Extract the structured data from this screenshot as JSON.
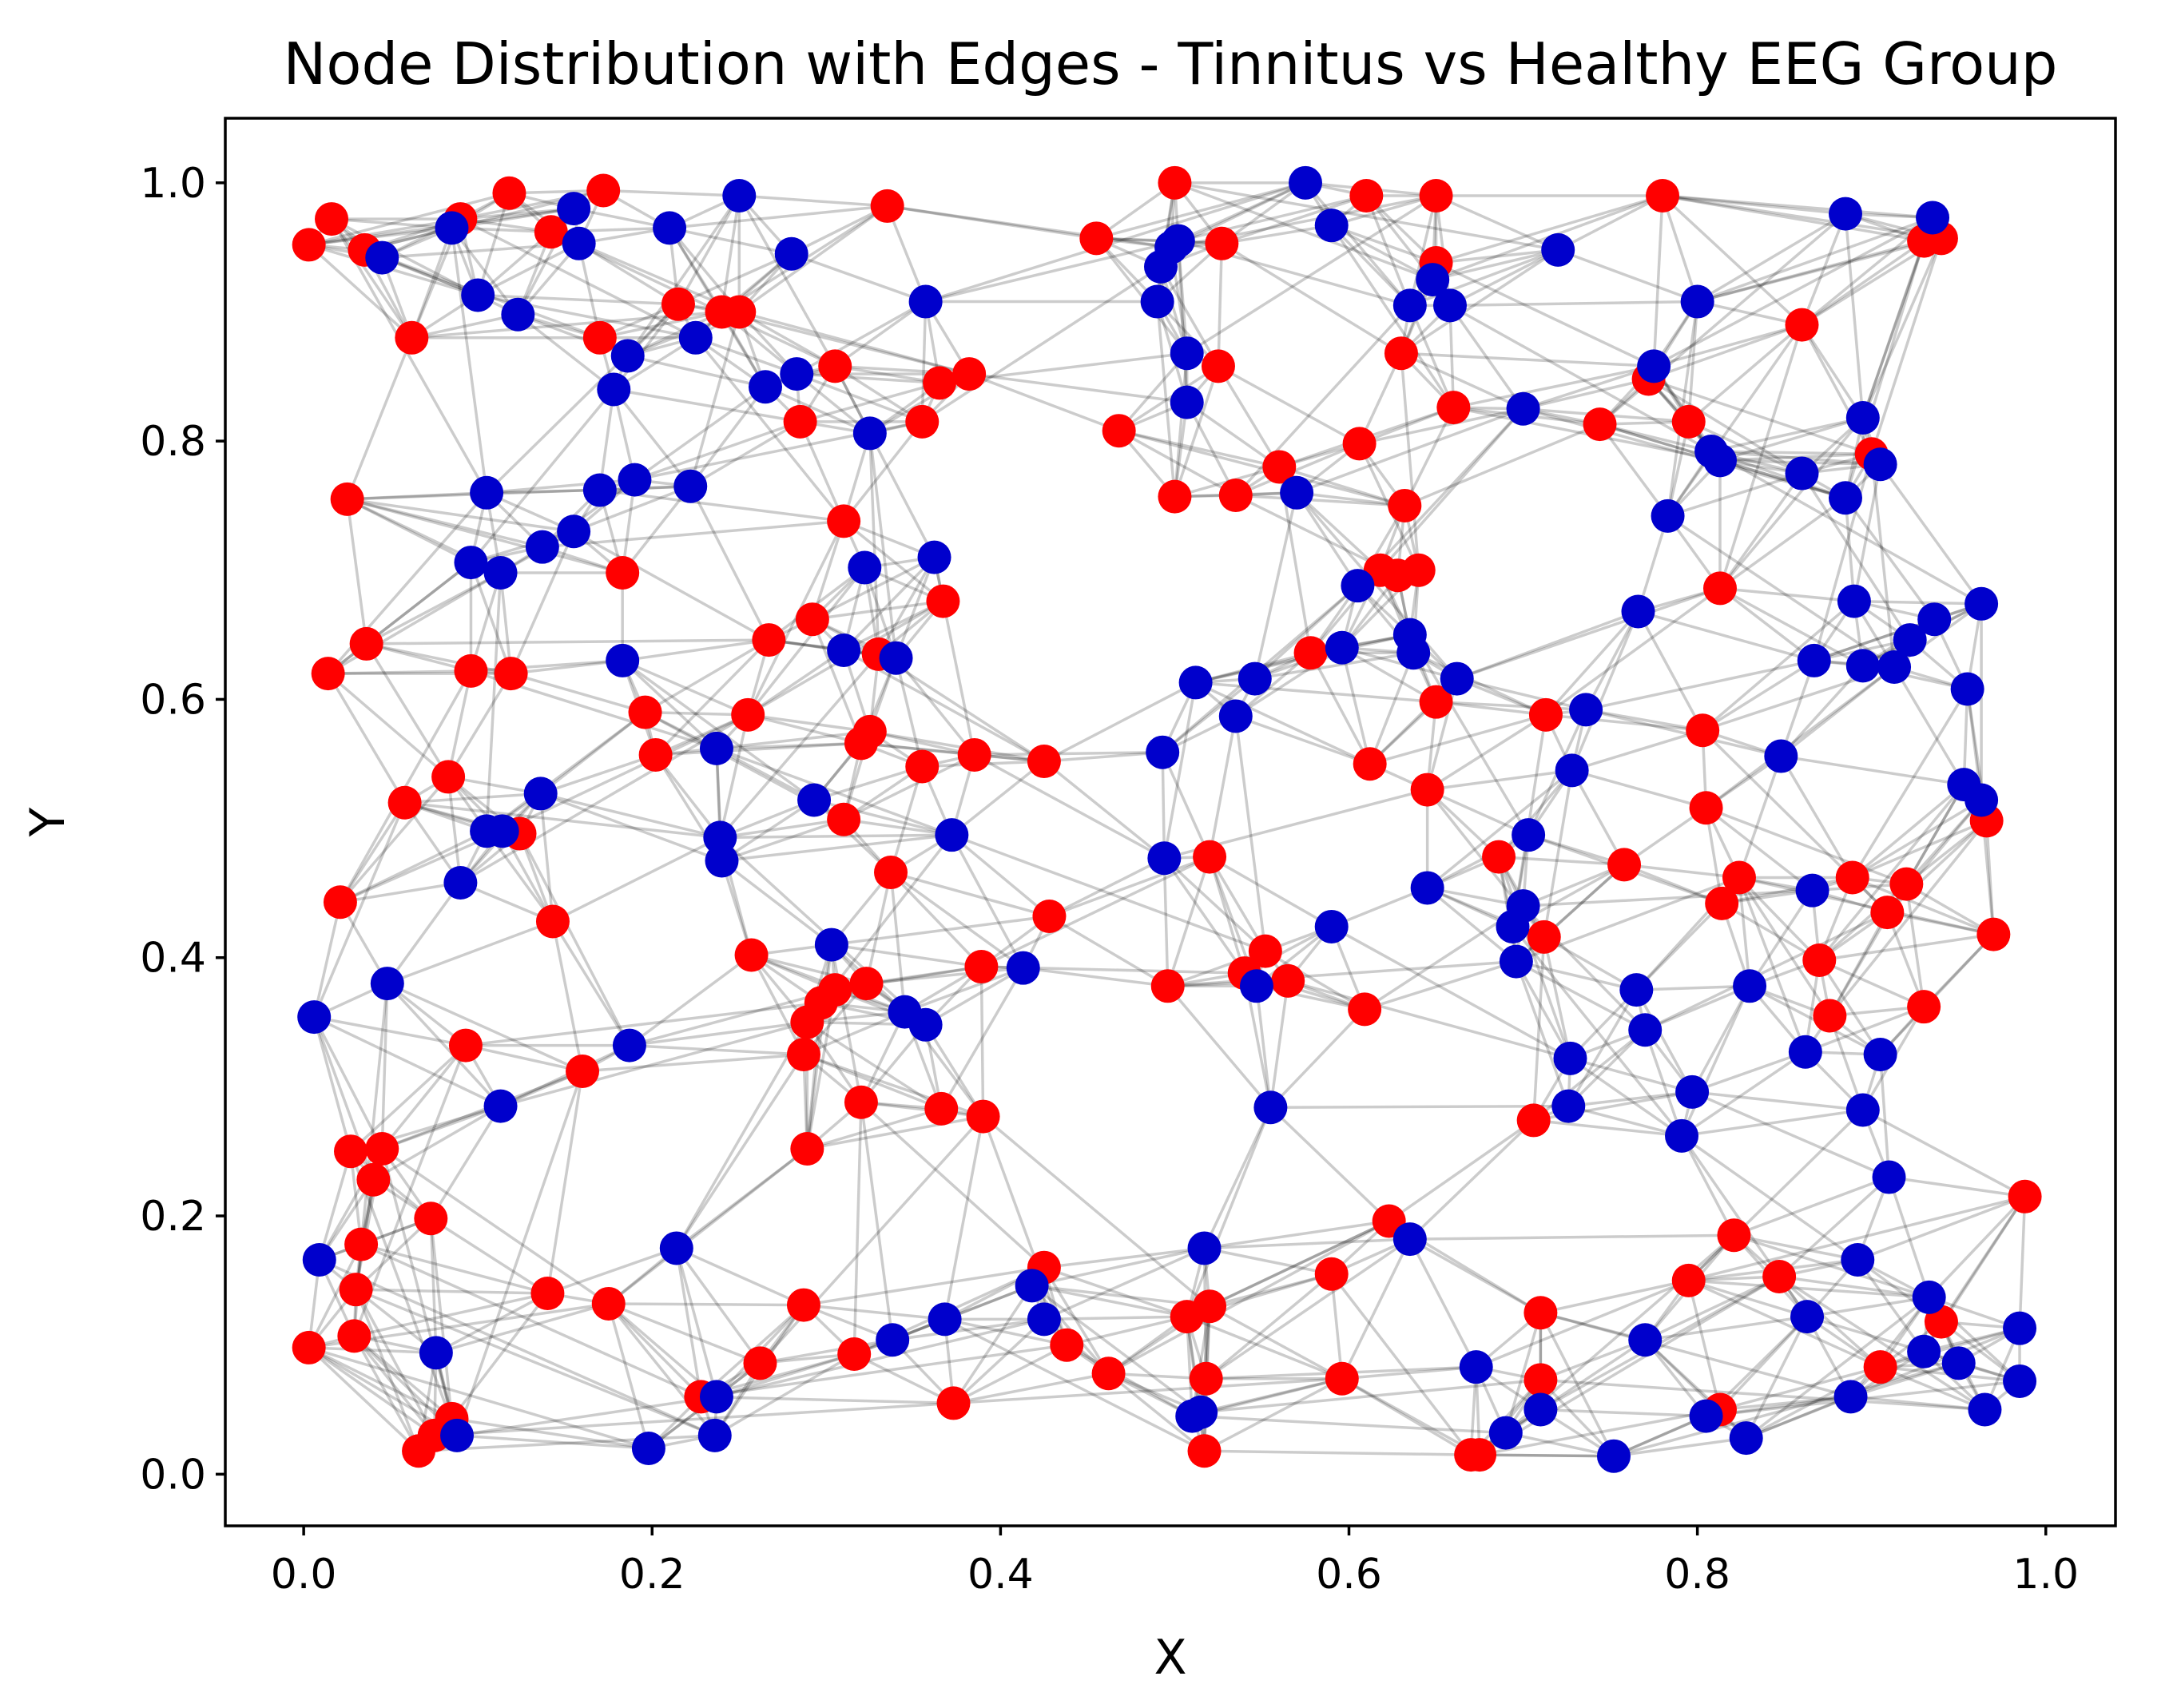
{
  "chart_data": {
    "type": "scatter",
    "title": "Node Distribution with Edges - Tinnitus vs Healthy EEG Group",
    "xlabel": "X",
    "ylabel": "Y",
    "xlim": [
      -0.045,
      1.04
    ],
    "ylim": [
      -0.04,
      1.05
    ],
    "xticks": [
      0.0,
      0.2,
      0.4,
      0.6,
      0.8,
      1.0
    ],
    "yticks": [
      0.0,
      0.2,
      0.4,
      0.6,
      0.8,
      1.0
    ],
    "xtick_labels": [
      "0.0",
      "0.2",
      "0.4",
      "0.6",
      "0.8",
      "1.0"
    ],
    "ytick_labels": [
      "0.0",
      "0.2",
      "0.4",
      "0.6",
      "0.8",
      "1.0"
    ],
    "legend": "none",
    "grid": false,
    "colors": {
      "tinnitus": "#ff0000",
      "healthy": "#0000cc",
      "edge": "#000000"
    },
    "series": [
      {
        "color": "#ff0000",
        "points": [
          [
            0.003,
            0.952
          ],
          [
            0.016,
            0.972
          ],
          [
            0.035,
            0.948
          ],
          [
            0.062,
            0.88
          ],
          [
            0.09,
            0.972
          ],
          [
            0.118,
            0.992
          ],
          [
            0.142,
            0.962
          ],
          [
            0.172,
            0.994
          ],
          [
            0.215,
            0.906
          ],
          [
            0.25,
            0.9
          ],
          [
            0.335,
            0.982
          ],
          [
            0.455,
            0.957
          ],
          [
            0.5,
            1.0
          ],
          [
            0.527,
            0.953
          ],
          [
            0.61,
            0.99
          ],
          [
            0.65,
            0.99
          ],
          [
            0.65,
            0.938
          ],
          [
            0.78,
            0.99
          ],
          [
            0.86,
            0.89
          ],
          [
            0.93,
            0.955
          ],
          [
            0.94,
            0.957
          ],
          [
            0.025,
            0.755
          ],
          [
            0.17,
            0.88
          ],
          [
            0.24,
            0.9
          ],
          [
            0.305,
            0.858
          ],
          [
            0.285,
            0.815
          ],
          [
            0.355,
            0.815
          ],
          [
            0.365,
            0.845
          ],
          [
            0.382,
            0.852
          ],
          [
            0.468,
            0.808
          ],
          [
            0.5,
            0.757
          ],
          [
            0.525,
            0.858
          ],
          [
            0.535,
            0.758
          ],
          [
            0.56,
            0.78
          ],
          [
            0.606,
            0.798
          ],
          [
            0.63,
            0.868
          ],
          [
            0.632,
            0.75
          ],
          [
            0.66,
            0.826
          ],
          [
            0.744,
            0.813
          ],
          [
            0.772,
            0.848
          ],
          [
            0.795,
            0.815
          ],
          [
            0.9,
            0.79
          ],
          [
            0.014,
            0.62
          ],
          [
            0.036,
            0.643
          ],
          [
            0.096,
            0.622
          ],
          [
            0.119,
            0.62
          ],
          [
            0.183,
            0.698
          ],
          [
            0.196,
            0.59
          ],
          [
            0.202,
            0.557
          ],
          [
            0.255,
            0.588
          ],
          [
            0.267,
            0.646
          ],
          [
            0.292,
            0.662
          ],
          [
            0.31,
            0.738
          ],
          [
            0.32,
            0.566
          ],
          [
            0.325,
            0.575
          ],
          [
            0.33,
            0.635
          ],
          [
            0.367,
            0.676
          ],
          [
            0.355,
            0.548
          ],
          [
            0.385,
            0.557
          ],
          [
            0.425,
            0.552
          ],
          [
            0.578,
            0.636
          ],
          [
            0.618,
            0.7
          ],
          [
            0.628,
            0.696
          ],
          [
            0.64,
            0.7
          ],
          [
            0.65,
            0.598
          ],
          [
            0.612,
            0.55
          ],
          [
            0.645,
            0.53
          ],
          [
            0.713,
            0.588
          ],
          [
            0.803,
            0.576
          ],
          [
            0.813,
            0.686
          ],
          [
            0.058,
            0.52
          ],
          [
            0.083,
            0.54
          ],
          [
            0.124,
            0.496
          ],
          [
            0.021,
            0.443
          ],
          [
            0.143,
            0.428
          ],
          [
            0.31,
            0.507
          ],
          [
            0.337,
            0.466
          ],
          [
            0.257,
            0.402
          ],
          [
            0.297,
            0.365
          ],
          [
            0.305,
            0.375
          ],
          [
            0.323,
            0.38
          ],
          [
            0.389,
            0.393
          ],
          [
            0.428,
            0.432
          ],
          [
            0.496,
            0.378
          ],
          [
            0.52,
            0.478
          ],
          [
            0.54,
            0.388
          ],
          [
            0.552,
            0.405
          ],
          [
            0.565,
            0.382
          ],
          [
            0.609,
            0.36
          ],
          [
            0.686,
            0.478
          ],
          [
            0.712,
            0.416
          ],
          [
            0.758,
            0.472
          ],
          [
            0.805,
            0.516
          ],
          [
            0.814,
            0.442
          ],
          [
            0.824,
            0.462
          ],
          [
            0.87,
            0.398
          ],
          [
            0.876,
            0.355
          ],
          [
            0.889,
            0.462
          ],
          [
            0.909,
            0.435
          ],
          [
            0.92,
            0.457
          ],
          [
            0.93,
            0.362
          ],
          [
            0.966,
            0.506
          ],
          [
            0.97,
            0.418
          ],
          [
            0.093,
            0.332
          ],
          [
            0.16,
            0.312
          ],
          [
            0.287,
            0.325
          ],
          [
            0.289,
            0.35
          ],
          [
            0.32,
            0.288
          ],
          [
            0.366,
            0.283
          ],
          [
            0.39,
            0.277
          ],
          [
            0.289,
            0.252
          ],
          [
            0.706,
            0.274
          ],
          [
            0.027,
            0.25
          ],
          [
            0.045,
            0.252
          ],
          [
            0.04,
            0.228
          ],
          [
            0.033,
            0.178
          ],
          [
            0.073,
            0.198
          ],
          [
            0.03,
            0.143
          ],
          [
            0.029,
            0.107
          ],
          [
            0.003,
            0.098
          ],
          [
            0.14,
            0.14
          ],
          [
            0.175,
            0.132
          ],
          [
            0.287,
            0.131
          ],
          [
            0.262,
            0.086
          ],
          [
            0.316,
            0.093
          ],
          [
            0.425,
            0.16
          ],
          [
            0.438,
            0.1
          ],
          [
            0.462,
            0.078
          ],
          [
            0.507,
            0.122
          ],
          [
            0.52,
            0.13
          ],
          [
            0.59,
            0.155
          ],
          [
            0.623,
            0.196
          ],
          [
            0.71,
            0.125
          ],
          [
            0.518,
            0.074
          ],
          [
            0.596,
            0.074
          ],
          [
            0.71,
            0.073
          ],
          [
            0.795,
            0.15
          ],
          [
            0.821,
            0.185
          ],
          [
            0.847,
            0.153
          ],
          [
            0.905,
            0.083
          ],
          [
            0.94,
            0.118
          ],
          [
            0.988,
            0.215
          ],
          [
            0.066,
            0.018
          ],
          [
            0.075,
            0.03
          ],
          [
            0.085,
            0.043
          ],
          [
            0.228,
            0.06
          ],
          [
            0.373,
            0.055
          ],
          [
            0.517,
            0.018
          ],
          [
            0.67,
            0.015
          ],
          [
            0.675,
            0.015
          ],
          [
            0.813,
            0.05
          ]
        ]
      },
      {
        "color": "#0000cc",
        "points": [
          [
            0.045,
            0.942
          ],
          [
            0.085,
            0.965
          ],
          [
            0.1,
            0.913
          ],
          [
            0.123,
            0.898
          ],
          [
            0.155,
            0.98
          ],
          [
            0.158,
            0.953
          ],
          [
            0.21,
            0.965
          ],
          [
            0.225,
            0.88
          ],
          [
            0.25,
            0.99
          ],
          [
            0.28,
            0.945
          ],
          [
            0.357,
            0.908
          ],
          [
            0.49,
            0.908
          ],
          [
            0.492,
            0.935
          ],
          [
            0.498,
            0.95
          ],
          [
            0.502,
            0.955
          ],
          [
            0.575,
            1.0
          ],
          [
            0.59,
            0.967
          ],
          [
            0.635,
            0.905
          ],
          [
            0.648,
            0.925
          ],
          [
            0.658,
            0.905
          ],
          [
            0.72,
            0.948
          ],
          [
            0.8,
            0.908
          ],
          [
            0.885,
            0.976
          ],
          [
            0.935,
            0.973
          ],
          [
            0.105,
            0.76
          ],
          [
            0.17,
            0.762
          ],
          [
            0.19,
            0.77
          ],
          [
            0.222,
            0.765
          ],
          [
            0.178,
            0.84
          ],
          [
            0.186,
            0.866
          ],
          [
            0.265,
            0.842
          ],
          [
            0.283,
            0.852
          ],
          [
            0.325,
            0.806
          ],
          [
            0.507,
            0.868
          ],
          [
            0.507,
            0.83
          ],
          [
            0.57,
            0.76
          ],
          [
            0.7,
            0.825
          ],
          [
            0.775,
            0.858
          ],
          [
            0.808,
            0.792
          ],
          [
            0.813,
            0.785
          ],
          [
            0.86,
            0.775
          ],
          [
            0.885,
            0.756
          ],
          [
            0.895,
            0.818
          ],
          [
            0.905,
            0.782
          ],
          [
            0.783,
            0.742
          ],
          [
            0.096,
            0.706
          ],
          [
            0.113,
            0.698
          ],
          [
            0.137,
            0.718
          ],
          [
            0.155,
            0.73
          ],
          [
            0.183,
            0.63
          ],
          [
            0.31,
            0.638
          ],
          [
            0.322,
            0.702
          ],
          [
            0.34,
            0.632
          ],
          [
            0.362,
            0.71
          ],
          [
            0.512,
            0.613
          ],
          [
            0.535,
            0.587
          ],
          [
            0.546,
            0.616
          ],
          [
            0.596,
            0.64
          ],
          [
            0.605,
            0.688
          ],
          [
            0.635,
            0.65
          ],
          [
            0.637,
            0.636
          ],
          [
            0.662,
            0.616
          ],
          [
            0.736,
            0.592
          ],
          [
            0.766,
            0.668
          ],
          [
            0.867,
            0.63
          ],
          [
            0.89,
            0.676
          ],
          [
            0.895,
            0.626
          ],
          [
            0.913,
            0.625
          ],
          [
            0.922,
            0.646
          ],
          [
            0.936,
            0.662
          ],
          [
            0.963,
            0.674
          ],
          [
            0.955,
            0.608
          ],
          [
            0.105,
            0.498
          ],
          [
            0.114,
            0.498
          ],
          [
            0.136,
            0.527
          ],
          [
            0.09,
            0.458
          ],
          [
            0.048,
            0.38
          ],
          [
            0.006,
            0.354
          ],
          [
            0.237,
            0.562
          ],
          [
            0.239,
            0.493
          ],
          [
            0.24,
            0.475
          ],
          [
            0.293,
            0.522
          ],
          [
            0.303,
            0.41
          ],
          [
            0.345,
            0.358
          ],
          [
            0.357,
            0.348
          ],
          [
            0.372,
            0.495
          ],
          [
            0.413,
            0.392
          ],
          [
            0.493,
            0.559
          ],
          [
            0.494,
            0.477
          ],
          [
            0.547,
            0.378
          ],
          [
            0.59,
            0.424
          ],
          [
            0.645,
            0.454
          ],
          [
            0.694,
            0.424
          ],
          [
            0.696,
            0.397
          ],
          [
            0.7,
            0.44
          ],
          [
            0.703,
            0.495
          ],
          [
            0.728,
            0.545
          ],
          [
            0.765,
            0.375
          ],
          [
            0.77,
            0.344
          ],
          [
            0.83,
            0.378
          ],
          [
            0.848,
            0.556
          ],
          [
            0.866,
            0.452
          ],
          [
            0.862,
            0.327
          ],
          [
            0.905,
            0.325
          ],
          [
            0.953,
            0.534
          ],
          [
            0.963,
            0.522
          ]
        ]
      },
      {
        "color": "#0000cc",
        "points": [
          [
            0.187,
            0.332
          ],
          [
            0.113,
            0.285
          ],
          [
            0.555,
            0.284
          ],
          [
            0.727,
            0.322
          ],
          [
            0.726,
            0.285
          ],
          [
            0.797,
            0.296
          ],
          [
            0.791,
            0.262
          ],
          [
            0.895,
            0.282
          ],
          [
            0.91,
            0.23
          ],
          [
            0.009,
            0.166
          ],
          [
            0.214,
            0.175
          ],
          [
            0.517,
            0.175
          ],
          [
            0.635,
            0.182
          ],
          [
            0.892,
            0.166
          ],
          [
            0.076,
            0.094
          ],
          [
            0.338,
            0.104
          ],
          [
            0.368,
            0.12
          ],
          [
            0.418,
            0.146
          ],
          [
            0.425,
            0.12
          ],
          [
            0.673,
            0.083
          ],
          [
            0.77,
            0.104
          ],
          [
            0.863,
            0.122
          ],
          [
            0.933,
            0.137
          ],
          [
            0.93,
            0.095
          ],
          [
            0.95,
            0.086
          ],
          [
            0.985,
            0.113
          ],
          [
            0.088,
            0.03
          ],
          [
            0.198,
            0.02
          ],
          [
            0.237,
            0.06
          ],
          [
            0.236,
            0.03
          ],
          [
            0.51,
            0.045
          ],
          [
            0.515,
            0.048
          ],
          [
            0.69,
            0.032
          ],
          [
            0.71,
            0.05
          ],
          [
            0.752,
            0.014
          ],
          [
            0.805,
            0.045
          ],
          [
            0.828,
            0.028
          ],
          [
            0.888,
            0.06
          ],
          [
            0.965,
            0.05
          ],
          [
            0.985,
            0.072
          ]
        ]
      }
    ]
  }
}
